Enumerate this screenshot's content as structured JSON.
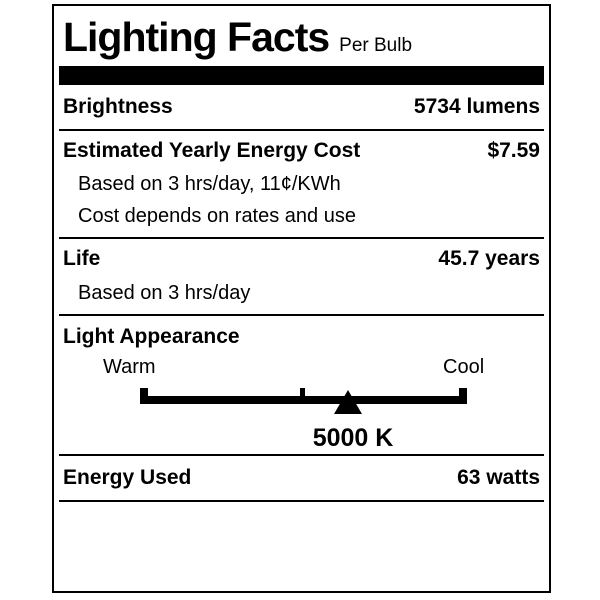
{
  "label": {
    "title": "Lighting Facts",
    "subtitle": "Per Bulb",
    "colors": {
      "ink": "#000000",
      "background": "#ffffff"
    },
    "rows": {
      "brightness": {
        "label": "Brightness",
        "value": "5734 lumens"
      },
      "energy_cost": {
        "label": "Estimated Yearly Energy Cost",
        "value": "$7.59",
        "notes": [
          "Based on 3 hrs/day, 11¢/KWh",
          "Cost depends on rates and use"
        ]
      },
      "life": {
        "label": "Life",
        "value": "45.7 years",
        "notes": [
          "Based on 3 hrs/day"
        ]
      },
      "light_appearance": {
        "label": "Light Appearance",
        "warm_label": "Warm",
        "cool_label": "Cool",
        "kelvin": "5000 K"
      },
      "energy_used": {
        "label": "Energy Used",
        "value": "63 watts"
      }
    }
  }
}
